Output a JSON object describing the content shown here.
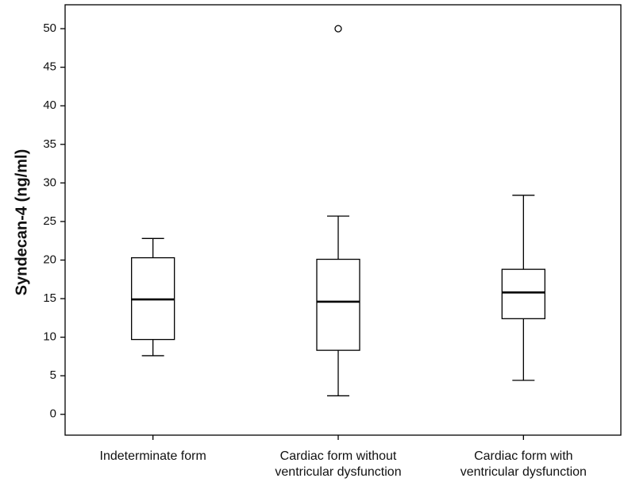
{
  "chart_data": {
    "type": "box",
    "y_label": "Syndecan-4 (ng/ml)",
    "categories": [
      [
        "Indeterminate form"
      ],
      [
        "Cardiac form without",
        "ventricular dysfunction"
      ],
      [
        "Cardiac form with",
        "ventricular dysfunction"
      ]
    ],
    "boxes": [
      {
        "min": 7.6,
        "q1": 9.7,
        "median": 14.9,
        "q3": 20.3,
        "max": 22.8
      },
      {
        "min": 2.4,
        "q1": 8.3,
        "median": 14.6,
        "q3": 20.1,
        "max": 25.7,
        "outliers": [
          50
        ]
      },
      {
        "min": 4.4,
        "q1": 12.4,
        "median": 15.8,
        "q3": 18.8,
        "max": 28.4
      }
    ],
    "color": "#ffffff",
    "ylim": [
      -2.7,
      53.1
    ],
    "yticks": [
      0,
      5,
      10,
      15,
      20,
      25,
      30,
      35,
      40,
      45,
      50
    ]
  }
}
